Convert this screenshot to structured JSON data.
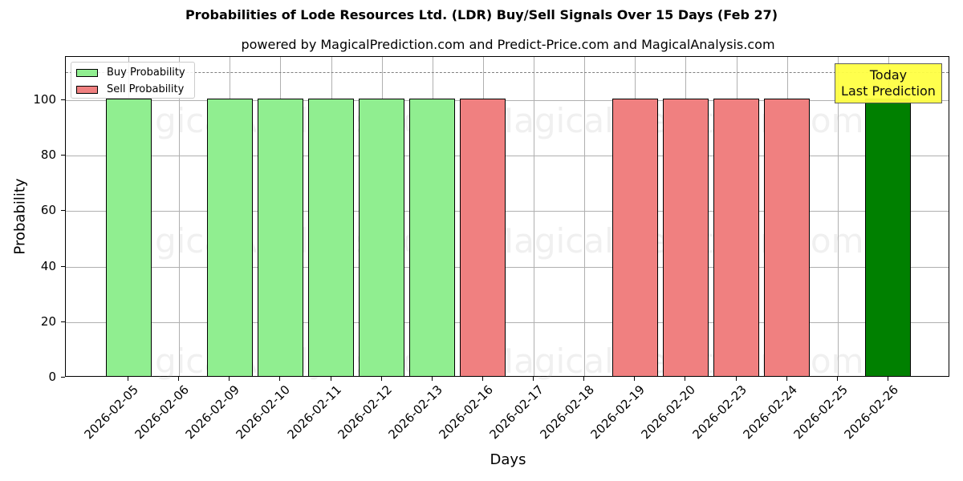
{
  "chart_data": {
    "type": "bar",
    "title": "Probabilities of Lode Resources Ltd. (LDR) Buy/Sell Signals Over 15 Days (Feb 27)",
    "subtitle": "powered by MagicalPrediction.com and Predict-Price.com and MagicalAnalysis.com",
    "xlabel": "Days",
    "ylabel": "Probability",
    "ylim": [
      0,
      115
    ],
    "yticks": [
      0,
      20,
      40,
      60,
      80,
      100
    ],
    "grid": true,
    "reference_line": {
      "y": 110,
      "style": "dashed",
      "color": "#808080"
    },
    "legend_position": "upper left",
    "categories": [
      "2026-02-05",
      "2026-02-06",
      "2026-02-09",
      "2026-02-10",
      "2026-02-11",
      "2026-02-12",
      "2026-02-13",
      "2026-02-16",
      "2026-02-17",
      "2026-02-18",
      "2026-02-19",
      "2026-02-20",
      "2026-02-23",
      "2026-02-24",
      "2026-02-25",
      "2026-02-26"
    ],
    "series": [
      {
        "name": "Buy Probability",
        "color": "#90ee90",
        "values": [
          100,
          0,
          100,
          100,
          100,
          100,
          100,
          0,
          0,
          0,
          0,
          0,
          0,
          0,
          0,
          100
        ]
      },
      {
        "name": "Sell Probability",
        "color": "#f08080",
        "values": [
          0,
          0,
          0,
          0,
          0,
          0,
          0,
          100,
          0,
          0,
          100,
          100,
          100,
          100,
          0,
          0
        ]
      }
    ],
    "highlight": {
      "category": "2026-02-26",
      "color": "#008000",
      "annotation": [
        "Today",
        "Last Prediction"
      ],
      "annotation_bg": "#ffff44"
    },
    "watermarks": [
      "MagicalAnalysis.com",
      "MagicalPrediction.com"
    ]
  },
  "legend": {
    "buy": "Buy Probability",
    "sell": "Sell Probability"
  },
  "annotation": {
    "line1": "Today",
    "line2": "Last Prediction"
  }
}
